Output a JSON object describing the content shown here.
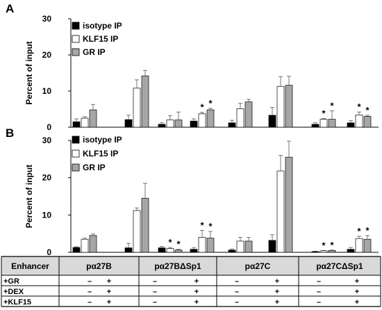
{
  "chart_data": [
    {
      "panel": "A",
      "type": "bar",
      "ylabel": "Percent of input",
      "ylim": [
        0,
        30
      ],
      "yticks": [
        "0",
        "10",
        "20",
        "30"
      ],
      "legend": {
        "position": "top-left",
        "entries": [
          "isotype IP",
          "KLF15 IP",
          "GR IP"
        ]
      },
      "series": [
        {
          "name": "isotype IP",
          "color": "#000000",
          "values": [
            1.5,
            2.1,
            0.8,
            1.7,
            1.2,
            3.3,
            0.8,
            1.2
          ],
          "errors": [
            0.8,
            1.2,
            0.4,
            0.6,
            0.7,
            2.2,
            0.4,
            0.6
          ]
        },
        {
          "name": "KLF15 IP",
          "color": "#ffffff",
          "values": [
            2.5,
            10.8,
            2.0,
            3.7,
            5.1,
            11.3,
            2.2,
            3.4
          ],
          "errors": [
            0.4,
            2.3,
            1.2,
            0.4,
            1.5,
            2.7,
            0.2,
            0.8
          ]
        },
        {
          "name": "GR IP",
          "color": "#a6a6a6",
          "values": [
            4.8,
            14.2,
            2.0,
            4.8,
            7.0,
            11.6,
            2.2,
            3.0
          ],
          "errors": [
            1.5,
            1.5,
            2.2,
            0.4,
            0.7,
            2.5,
            2.3,
            0.3
          ]
        }
      ],
      "stars": [
        {
          "group": 3,
          "series": 1
        },
        {
          "group": 3,
          "series": 2
        },
        {
          "group": 6,
          "series": 1
        },
        {
          "group": 6,
          "series": 2
        },
        {
          "group": 7,
          "series": 1
        },
        {
          "group": 7,
          "series": 2
        }
      ]
    },
    {
      "panel": "B",
      "type": "bar",
      "ylabel": "Percent of input",
      "ylim": [
        0,
        30
      ],
      "yticks": [
        "0",
        "10",
        "20",
        "30"
      ],
      "legend": {
        "position": "top-left",
        "entries": [
          "isotype IP",
          "KLF15 IP",
          "GR IP"
        ]
      },
      "series": [
        {
          "name": "isotype IP",
          "color": "#000000",
          "values": [
            1.3,
            1.2,
            1.2,
            0.8,
            0.6,
            3.2,
            0.2,
            0.8
          ],
          "errors": [
            0.2,
            1.2,
            0.4,
            0.4,
            0.3,
            1.5,
            0.1,
            0.5
          ]
        },
        {
          "name": "KLF15 IP",
          "color": "#ffffff",
          "values": [
            3.5,
            11.2,
            1.0,
            4.0,
            3.0,
            21.8,
            0.4,
            3.7
          ],
          "errors": [
            0.3,
            0.7,
            0.3,
            1.9,
            1.0,
            4.2,
            0.1,
            0.6
          ]
        },
        {
          "name": "GR IP",
          "color": "#a6a6a6",
          "values": [
            4.5,
            14.5,
            0.6,
            3.8,
            3.0,
            25.5,
            0.5,
            3.5
          ],
          "errors": [
            0.4,
            4.0,
            0.2,
            1.8,
            1.0,
            4.3,
            0.1,
            1.0
          ]
        }
      ],
      "stars": [
        {
          "group": 2,
          "series": 1
        },
        {
          "group": 2,
          "series": 2
        },
        {
          "group": 3,
          "series": 1
        },
        {
          "group": 3,
          "series": 2
        },
        {
          "group": 6,
          "series": 1
        },
        {
          "group": 6,
          "series": 2
        },
        {
          "group": 7,
          "series": 1
        },
        {
          "group": 7,
          "series": 2
        }
      ]
    }
  ],
  "panel_labels": [
    "A",
    "B"
  ],
  "star_symbol": "*",
  "table": {
    "header_label": "Enhancer",
    "enhancers": [
      "pα27B",
      "pα27BΔSp1",
      "pα27C",
      "pα27CΔSp1"
    ],
    "rows": [
      {
        "label": "+GR",
        "values": [
          "–",
          "+",
          "–",
          "+",
          "–",
          "+",
          "–",
          "+"
        ]
      },
      {
        "label": "+DEX",
        "values": [
          "–",
          "+",
          "–",
          "+",
          "–",
          "+",
          "–",
          "+"
        ]
      },
      {
        "label": "+KLF15",
        "values": [
          "–",
          "+",
          "–",
          "+",
          "–",
          "+",
          "–",
          "+"
        ]
      }
    ]
  }
}
